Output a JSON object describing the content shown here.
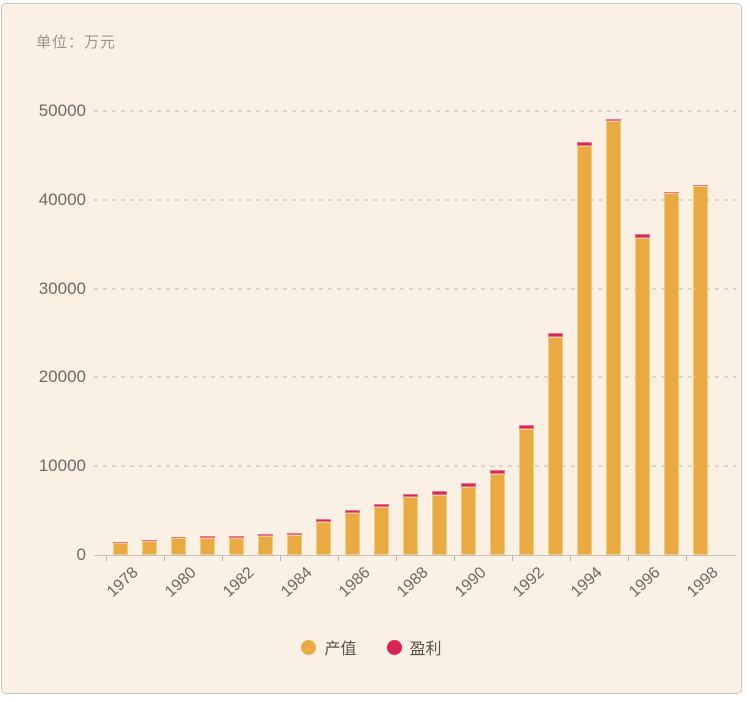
{
  "panel": {
    "unit_label": "单位：万元"
  },
  "chart_data": {
    "type": "bar",
    "stacked": true,
    "title": "单位：万元",
    "categories": [
      1978,
      1979,
      1980,
      1981,
      1982,
      1983,
      1984,
      1985,
      1986,
      1987,
      1988,
      1989,
      1990,
      1991,
      1992,
      1993,
      1994,
      1995,
      1996,
      1997,
      1998
    ],
    "series": [
      {
        "name": "产值",
        "color": "#E9AB41",
        "values": [
          1380,
          1600,
          1880,
          1900,
          1950,
          2130,
          2250,
          3700,
          4700,
          5350,
          6500,
          6800,
          7650,
          9100,
          14150,
          24600,
          46100,
          48850,
          35750,
          40770,
          41550
        ]
      },
      {
        "name": "盈利",
        "color": "#DB2456",
        "values": [
          50,
          60,
          200,
          200,
          200,
          200,
          220,
          350,
          350,
          350,
          400,
          400,
          450,
          450,
          450,
          450,
          450,
          250,
          370,
          80,
          80
        ]
      }
    ],
    "ylim": [
      0,
      50000
    ],
    "yticks": [
      0,
      10000,
      20000,
      30000,
      40000,
      50000
    ],
    "x_tick_labels": [
      "1978",
      "1980",
      "1982",
      "1984",
      "1986",
      "1988",
      "1990",
      "1992",
      "1994",
      "1996",
      "1998"
    ],
    "grid": "horizontal dashed",
    "legend_position": "bottom-center"
  },
  "legend": {
    "items": [
      {
        "label": "产值",
        "color": "#E9AB41"
      },
      {
        "label": "盈利",
        "color": "#DB2456"
      }
    ]
  }
}
